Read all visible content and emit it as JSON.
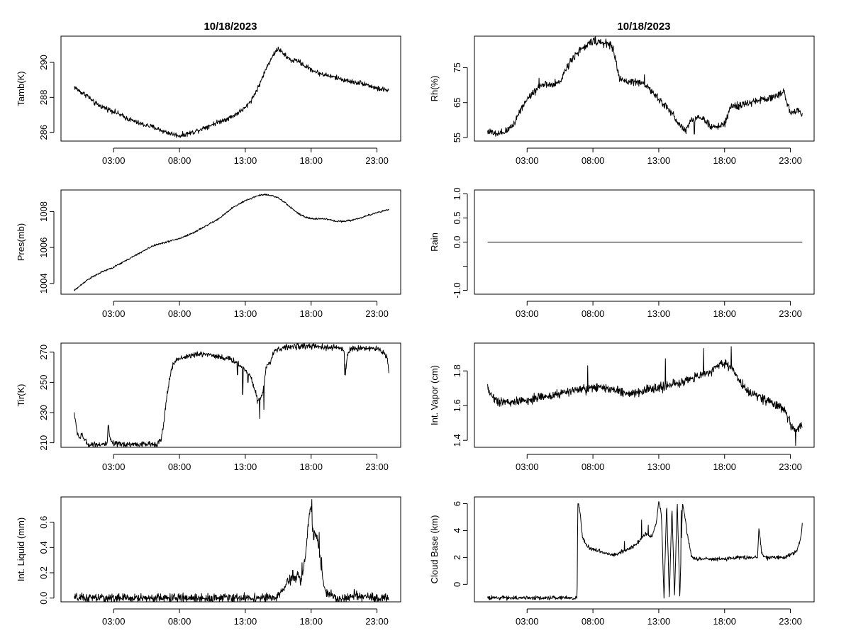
{
  "figure": {
    "left_title": "10/18/2023",
    "right_title": "10/18/2023",
    "line_color": "#000000"
  },
  "chart_data": [
    {
      "id": "tamb",
      "type": "line",
      "ylabel": "Tamb(K)",
      "xlabel": "",
      "x_ticks": [
        "03:00",
        "08:00",
        "13:00",
        "18:00",
        "23:00"
      ],
      "x_tick_hours": [
        3,
        8,
        13,
        18,
        23
      ],
      "xlim": [
        -1,
        24.8
      ],
      "ylim": [
        285.5,
        291.5
      ],
      "y_ticks": [
        286,
        288,
        290
      ],
      "y_tick_labels": [
        "286",
        "288",
        "290"
      ],
      "x": [
        0,
        0.5,
        1,
        1.5,
        2,
        3,
        4,
        5,
        6,
        7,
        8,
        9,
        10,
        11,
        12,
        13,
        13.5,
        14,
        14.5,
        15,
        15.5,
        16,
        16.5,
        17,
        17.5,
        18,
        18.5,
        19,
        20,
        21,
        22,
        23,
        23.9
      ],
      "y": [
        288.6,
        288.3,
        288.1,
        287.7,
        287.5,
        287.2,
        286.8,
        286.5,
        286.3,
        286.0,
        285.8,
        286.0,
        286.3,
        286.6,
        286.9,
        287.4,
        287.9,
        288.6,
        289.5,
        290.3,
        290.8,
        290.4,
        290.1,
        290.1,
        289.8,
        289.6,
        289.4,
        289.3,
        289.1,
        288.9,
        288.8,
        288.5,
        288.4
      ],
      "noise": 0.12,
      "spikes": []
    },
    {
      "id": "pres",
      "type": "line",
      "ylabel": "Pres(mb)",
      "xlabel": "",
      "x_ticks": [
        "03:00",
        "08:00",
        "13:00",
        "18:00",
        "23:00"
      ],
      "x_tick_hours": [
        3,
        8,
        13,
        18,
        23
      ],
      "xlim": [
        -1,
        24.8
      ],
      "ylim": [
        1003.4,
        1009.2
      ],
      "y_ticks": [
        1004,
        1006,
        1008
      ],
      "y_tick_labels": [
        "1004",
        "1006",
        "1008"
      ],
      "x": [
        0,
        1,
        2,
        3,
        4,
        5,
        6,
        7,
        8,
        9,
        10,
        11,
        12,
        13,
        13.5,
        14,
        14.5,
        15,
        15.5,
        16,
        16.5,
        17,
        17.5,
        18,
        19,
        20,
        21,
        22,
        23,
        23.9
      ],
      "y": [
        1003.6,
        1004.2,
        1004.6,
        1004.9,
        1005.3,
        1005.7,
        1006.1,
        1006.3,
        1006.5,
        1006.8,
        1007.2,
        1007.6,
        1008.2,
        1008.6,
        1008.75,
        1008.9,
        1008.95,
        1008.9,
        1008.75,
        1008.5,
        1008.2,
        1007.9,
        1007.7,
        1007.6,
        1007.6,
        1007.45,
        1007.5,
        1007.7,
        1007.95,
        1008.1
      ],
      "noise": 0.04,
      "spikes": []
    },
    {
      "id": "tir",
      "type": "line",
      "ylabel": "Tir(K)",
      "xlabel": "",
      "x_ticks": [
        "03:00",
        "08:00",
        "13:00",
        "18:00",
        "23:00"
      ],
      "x_tick_hours": [
        3,
        8,
        13,
        18,
        23
      ],
      "xlim": [
        -1,
        24.8
      ],
      "ylim": [
        207,
        276
      ],
      "y_ticks": [
        210,
        230,
        250,
        270
      ],
      "y_tick_labels": [
        "210",
        "230",
        "250",
        "270"
      ],
      "x": [
        0,
        0.2,
        0.4,
        0.6,
        0.8,
        1,
        1.5,
        2,
        2.5,
        2.6,
        2.7,
        2.9,
        3,
        4,
        5,
        6,
        6.4,
        6.6,
        6.8,
        7,
        7.2,
        7.4,
        7.6,
        7.8,
        8,
        9,
        10,
        11,
        12,
        12.5,
        13,
        13.4,
        13.7,
        14,
        14.3,
        14.6,
        15,
        15.2,
        15.5,
        16,
        17,
        18,
        19,
        20,
        20.5,
        20.6,
        20.8,
        21,
        22,
        23,
        23.5,
        23.8,
        23.9
      ],
      "y": [
        230,
        218,
        213,
        215,
        212,
        209,
        209,
        209,
        209,
        222,
        213,
        210,
        209,
        209,
        209,
        209,
        210,
        212,
        222,
        238,
        250,
        259,
        263,
        265,
        266,
        268,
        269,
        267,
        265,
        262,
        258,
        255,
        245,
        238,
        242,
        260,
        266,
        271,
        272,
        273,
        274,
        274,
        273,
        273,
        272,
        256,
        270,
        272,
        273,
        272,
        270,
        266,
        256
      ],
      "noise": 1.6,
      "spikes": [
        [
          12.4,
          255
        ],
        [
          12.8,
          242
        ],
        [
          13.2,
          250
        ],
        [
          13.9,
          236
        ],
        [
          14.1,
          226
        ],
        [
          14.4,
          232
        ],
        [
          20.55,
          255
        ]
      ]
    },
    {
      "id": "liquid",
      "type": "line",
      "ylabel": "Int. Liquid (mm)",
      "xlabel": "",
      "x_ticks": [
        "03:00",
        "08:00",
        "13:00",
        "18:00",
        "23:00"
      ],
      "x_tick_hours": [
        3,
        8,
        13,
        18,
        23
      ],
      "xlim": [
        -1,
        24.8
      ],
      "ylim": [
        -0.03,
        0.8
      ],
      "y_ticks": [
        0,
        0.2,
        0.4,
        0.6
      ],
      "y_tick_labels": [
        "0.0",
        "0.2",
        "0.4",
        "0.6"
      ],
      "x": [
        0,
        15.4,
        15.6,
        15.8,
        16,
        16.2,
        16.5,
        16.8,
        17,
        17.2,
        17.4,
        17.6,
        17.8,
        18,
        18.1,
        18.3,
        18.5,
        18.7,
        18.9,
        19.1,
        19.3,
        19.6,
        20,
        21,
        21.3,
        21.5,
        22,
        23,
        23.9
      ],
      "y": [
        0,
        0,
        0.03,
        0.06,
        0.09,
        0.12,
        0.15,
        0.16,
        0.2,
        0.12,
        0.22,
        0.35,
        0.6,
        0.75,
        0.55,
        0.5,
        0.45,
        0.3,
        0.15,
        0.05,
        0.03,
        0.02,
        0,
        0,
        0.03,
        0,
        0.01,
        0,
        0
      ],
      "noise": 0.03,
      "spikes": [
        [
          16.6,
          0.22
        ],
        [
          17.3,
          0.28
        ],
        [
          18.05,
          0.78
        ],
        [
          18.2,
          0.46
        ],
        [
          18.6,
          0.52
        ],
        [
          18.8,
          0.32
        ]
      ]
    },
    {
      "id": "rh",
      "type": "line",
      "ylabel": "Rh(%)",
      "xlabel": "",
      "x_ticks": [
        "03:00",
        "08:00",
        "13:00",
        "18:00",
        "23:00"
      ],
      "x_tick_hours": [
        3,
        8,
        13,
        18,
        23
      ],
      "xlim": [
        -1,
        24.8
      ],
      "ylim": [
        54,
        84
      ],
      "y_ticks": [
        55,
        65,
        75
      ],
      "y_tick_labels": [
        "55",
        "65",
        "75"
      ],
      "x": [
        0,
        0.5,
        1,
        1.5,
        2,
        2.5,
        3,
        3.5,
        4,
        4.5,
        5,
        5.5,
        6,
        6.5,
        7,
        7.5,
        8,
        8.5,
        9,
        9.5,
        10,
        10.5,
        11,
        11.5,
        12,
        12.5,
        13,
        13.5,
        14,
        14.5,
        15,
        15.5,
        16,
        16.5,
        17,
        17.5,
        18,
        18.5,
        19,
        20,
        21,
        22,
        22.5,
        23,
        23.5,
        23.9
      ],
      "y": [
        57,
        56,
        56,
        57,
        59,
        63,
        66,
        68,
        70,
        70,
        70,
        71,
        75,
        78,
        80,
        81,
        83,
        82,
        82,
        81,
        72,
        71,
        71,
        71,
        70,
        68,
        66,
        64,
        62,
        59,
        57,
        60,
        61,
        60,
        58,
        58,
        59,
        64,
        64,
        65,
        66,
        67,
        68,
        62,
        63,
        62
      ],
      "noise": 0.9,
      "spikes": [
        [
          3.9,
          72
        ],
        [
          9.1,
          82
        ],
        [
          11.9,
          73
        ],
        [
          15.7,
          56
        ]
      ]
    },
    {
      "id": "rain",
      "type": "line",
      "ylabel": "Rain",
      "xlabel": "",
      "x_ticks": [
        "03:00",
        "08:00",
        "13:00",
        "18:00",
        "23:00"
      ],
      "x_tick_hours": [
        3,
        8,
        13,
        18,
        23
      ],
      "xlim": [
        -1,
        24.8
      ],
      "ylim": [
        -1.08,
        1.08
      ],
      "y_ticks": [
        -1,
        -0.5,
        0,
        0.5,
        1
      ],
      "y_tick_labels": [
        "-1.0",
        "",
        "0.0",
        "0.5",
        "1.0"
      ],
      "x": [
        0,
        23.9
      ],
      "y": [
        0,
        0
      ],
      "noise": 0,
      "spikes": []
    },
    {
      "id": "vapor",
      "type": "line",
      "ylabel": "Int. Vapor (cm)",
      "xlabel": "",
      "x_ticks": [
        "03:00",
        "08:00",
        "13:00",
        "18:00",
        "23:00"
      ],
      "x_tick_hours": [
        3,
        8,
        13,
        18,
        23
      ],
      "xlim": [
        -1,
        24.8
      ],
      "ylim": [
        1.36,
        1.96
      ],
      "y_ticks": [
        1.4,
        1.6,
        1.8
      ],
      "y_tick_labels": [
        "1.4",
        "1.6",
        "1.8"
      ],
      "x": [
        0,
        0.5,
        1,
        2,
        3,
        4,
        5,
        6,
        7,
        8,
        9,
        10,
        11,
        12,
        13,
        14,
        15,
        16,
        17,
        17.5,
        18,
        18.5,
        19,
        19.5,
        20,
        21,
        22,
        22.5,
        23,
        23.5,
        23.9
      ],
      "y": [
        1.7,
        1.64,
        1.62,
        1.62,
        1.63,
        1.65,
        1.66,
        1.68,
        1.69,
        1.7,
        1.7,
        1.68,
        1.67,
        1.69,
        1.7,
        1.72,
        1.74,
        1.77,
        1.8,
        1.83,
        1.85,
        1.82,
        1.77,
        1.7,
        1.67,
        1.64,
        1.6,
        1.58,
        1.5,
        1.45,
        1.5
      ],
      "noise": 0.022,
      "spikes": [
        [
          7.6,
          1.83
        ],
        [
          13.5,
          1.87
        ],
        [
          16.4,
          1.93
        ],
        [
          18.5,
          1.94
        ],
        [
          23.4,
          1.37
        ]
      ]
    },
    {
      "id": "cloudbase",
      "type": "line",
      "ylabel": "Cloud Base (km)",
      "xlabel": "",
      "x_ticks": [
        "03:00",
        "08:00",
        "13:00",
        "18:00",
        "23:00"
      ],
      "x_tick_hours": [
        3,
        8,
        13,
        18,
        23
      ],
      "xlim": [
        -1,
        24.8
      ],
      "ylim": [
        -1.3,
        6.5
      ],
      "y_ticks": [
        0,
        2,
        4,
        6
      ],
      "y_tick_labels": [
        "0",
        "2",
        "4",
        "6"
      ],
      "x": [
        0,
        6.8,
        6.85,
        7,
        7.2,
        7.5,
        8,
        8.5,
        9,
        9.5,
        10,
        10.5,
        11,
        11.5,
        12,
        12.5,
        12.8,
        13,
        13.2,
        13.4,
        13.6,
        13.8,
        14,
        14.2,
        14.4,
        14.6,
        14.8,
        15,
        15.2,
        15.5,
        16,
        17,
        18,
        19,
        20,
        20.5,
        20.6,
        20.8,
        21,
        22,
        22.5,
        23,
        23.5,
        23.8,
        23.9
      ],
      "y": [
        -1,
        -1,
        6.2,
        5.5,
        3.5,
        2.9,
        2.6,
        2.5,
        2.3,
        2.2,
        2.3,
        2.5,
        2.8,
        3.2,
        3.8,
        3.5,
        4.5,
        6.2,
        5.2,
        -1,
        6,
        -1,
        5.8,
        -1,
        6.2,
        -1,
        6,
        5,
        3.5,
        2,
        1.9,
        1.85,
        1.9,
        2,
        2,
        2,
        4.2,
        2.5,
        2,
        2,
        2,
        2.2,
        2.5,
        3.5,
        4.5
      ],
      "noise": 0.12,
      "spikes": [
        [
          10.4,
          3.2
        ],
        [
          11.7,
          4.8
        ],
        [
          12.2,
          4.4
        ],
        [
          14.7,
          5.5
        ]
      ]
    }
  ]
}
